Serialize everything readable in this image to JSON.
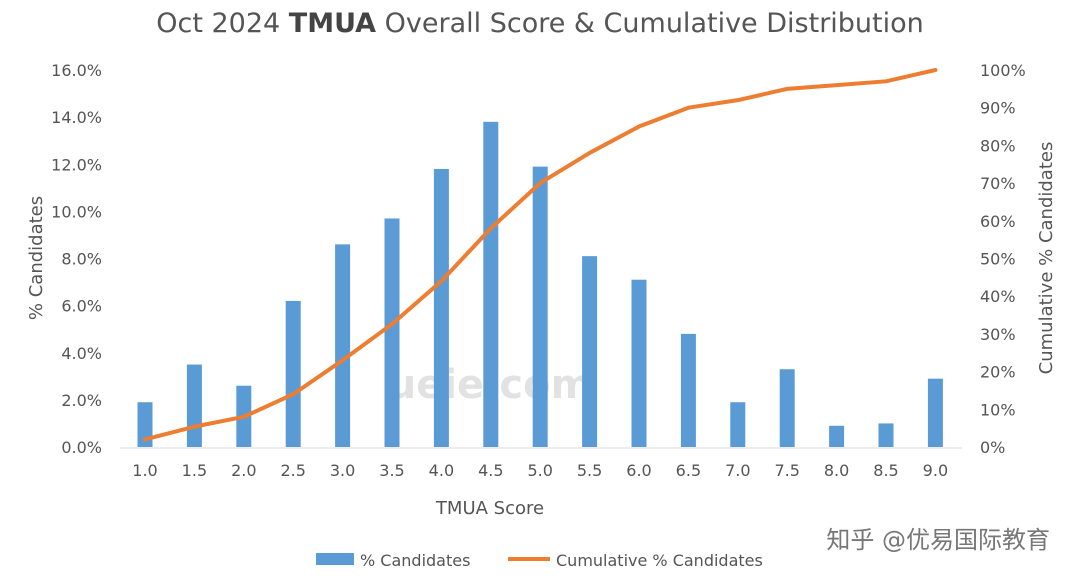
{
  "chart_data": {
    "type": "bar",
    "title_prefix": "Oct 2024 ",
    "title_bold": "TMUA",
    "title_suffix": " Overall Score & Cumulative Distribution",
    "xlabel": "TMUA Score",
    "ylabel": "% Candidates",
    "y2label": "Cumulative % Candidates",
    "categories": [
      "1.0",
      "1.5",
      "2.0",
      "2.5",
      "3.0",
      "3.5",
      "4.0",
      "4.5",
      "5.0",
      "5.5",
      "6.0",
      "6.5",
      "7.0",
      "7.5",
      "8.0",
      "8.5",
      "9.0"
    ],
    "series": [
      {
        "name": "% Candidates",
        "type": "bar",
        "axis": "left",
        "color": "#5B9BD5",
        "values": [
          1.9,
          3.5,
          2.6,
          6.2,
          8.6,
          9.7,
          11.8,
          13.8,
          11.9,
          8.1,
          7.1,
          4.8,
          1.9,
          3.3,
          0.9,
          1.0,
          2.9
        ]
      },
      {
        "name": "Cumulative % Candidates",
        "type": "line",
        "axis": "right",
        "color": "#ED7D31",
        "values": [
          2,
          5.4,
          8,
          14,
          23,
          32.6,
          44,
          58,
          70,
          78,
          85,
          90,
          92,
          95,
          96,
          97,
          100
        ]
      }
    ],
    "ylim": [
      0,
      16
    ],
    "yticks": [
      "0.0%",
      "2.0%",
      "4.0%",
      "6.0%",
      "8.0%",
      "10.0%",
      "12.0%",
      "14.0%",
      "16.0%"
    ],
    "y2lim": [
      0,
      100
    ],
    "y2ticks": [
      "0%",
      "10%",
      "20%",
      "30%",
      "40%",
      "50%",
      "60%",
      "70%",
      "80%",
      "90%",
      "100%"
    ],
    "grid": false,
    "legend": "bottom"
  },
  "watermarks": {
    "site": "ueie.com",
    "zhihu": "知乎 @优易国际教育"
  }
}
